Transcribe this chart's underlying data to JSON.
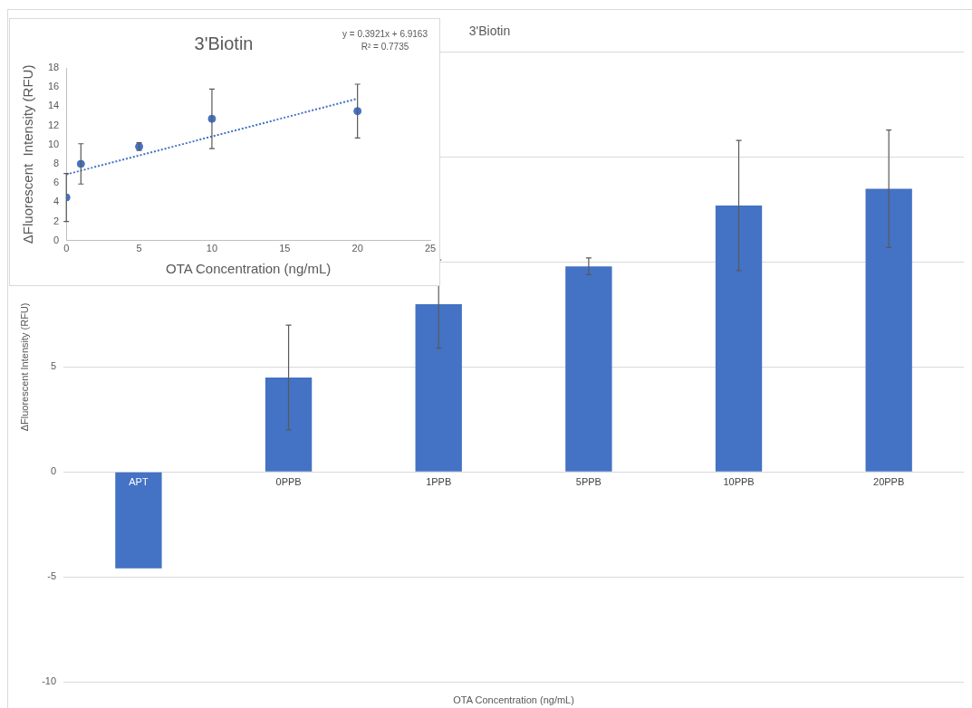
{
  "chart_data": [
    {
      "type": "bar",
      "title": "3'Biotin",
      "xlabel": "OTA Concentration (ng/mL)",
      "ylabel": "ΔFluorescent Intensity (RFU)",
      "categories": [
        "APT",
        "0PPB",
        "1PPB",
        "5PPB",
        "10PPB",
        "20PPB"
      ],
      "values": [
        -4.6,
        4.5,
        8.0,
        9.8,
        12.7,
        13.5
      ],
      "errors": [
        null,
        2.5,
        2.1,
        0.4,
        3.1,
        2.8
      ],
      "color": "#4472c4",
      "ylim": [
        -10,
        20
      ],
      "yticks": [
        -10,
        -5,
        0,
        5,
        {
          "value": 10,
          "label": null
        },
        {
          "value": 15,
          "label": null
        },
        {
          "value": 20,
          "label": null
        }
      ],
      "grid": "y"
    },
    {
      "type": "scatter",
      "title": "3'Biotin",
      "xlabel": "OTA Concentration (ng/mL)",
      "ylabel": "ΔFluorescent  Intensity (RFU)",
      "series": [
        {
          "type": "scatter",
          "color": "#4472c4",
          "x": [
            0,
            1,
            5,
            10,
            20
          ],
          "values": [
            4.5,
            8.0,
            9.8,
            12.7,
            13.5
          ],
          "errors": [
            2.5,
            2.1,
            0.4,
            3.1,
            2.8
          ],
          "marker": "circle"
        },
        {
          "type": "line",
          "color": "#4472c4",
          "x": [
            0,
            20
          ],
          "values": [
            6.9,
            14.8
          ],
          "line_style": "dotted"
        }
      ],
      "xlim": [
        0,
        25
      ],
      "xticks": [
        0,
        5,
        10,
        15,
        20,
        25
      ],
      "ylim": [
        0,
        18
      ],
      "yticks": [
        0,
        2,
        4,
        6,
        8,
        10,
        12,
        14,
        16,
        18
      ],
      "grid": false,
      "annotations": [
        "y = 0.3921x + 6.9163",
        "R² = 0.7735"
      ]
    }
  ]
}
